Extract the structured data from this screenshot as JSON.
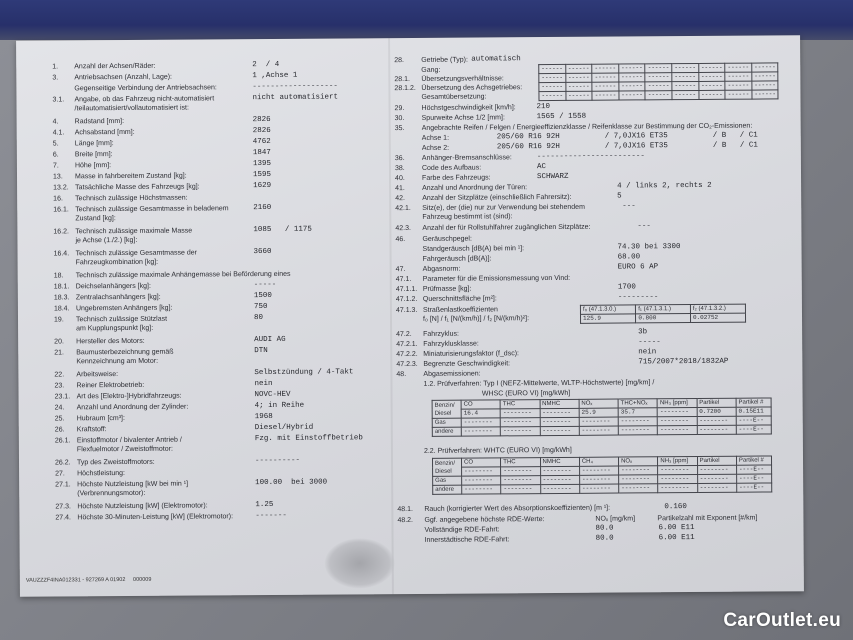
{
  "left_rows": [
    {
      "num": "1.",
      "label": "Anzahl der Achsen/Räder:",
      "value": "2  / 4"
    },
    {
      "num": "3.",
      "label": "Antriebsachsen (Anzahl, Lage):",
      "value": "1 ,Achse 1"
    },
    {
      "num": "",
      "label": "Gegenseitige Verbindung der Antriebsachsen:",
      "value": "-------------------"
    },
    {
      "num": "3.1.",
      "label": "Angabe, ob das Fahrzeug nicht-automatisiert\n/teilautomatisiert/vollautomatisiert ist:",
      "value": "nicht automatisiert"
    },
    {
      "num": "4.",
      "label": "Radstand [mm]:",
      "value": "2826"
    },
    {
      "num": "4.1.",
      "label": "Achsabstand [mm]:",
      "value": "2826"
    },
    {
      "num": "5.",
      "label": "Länge [mm]:",
      "value": "4762"
    },
    {
      "num": "6.",
      "label": "Breite [mm]:",
      "value": "1847"
    },
    {
      "num": "7.",
      "label": "Höhe [mm]:",
      "value": "1395"
    },
    {
      "num": "13.",
      "label": "Masse in fahrbereitem Zustand [kg]:",
      "value": "1595"
    },
    {
      "num": "13.2.",
      "label": "Tatsächliche Masse des Fahrzeugs [kg]:",
      "value": "1629"
    },
    {
      "num": "16.",
      "label": "Technisch zulässige Höchstmassen:",
      "value": ""
    },
    {
      "num": "16.1.",
      "label": "Technisch zulässige Gesamtmasse in beladenem\nZustand [kg]:",
      "value": "2160"
    },
    {
      "num": "16.2.",
      "label": "Technisch zulässige maximale Masse\nje Achse (1./2.) [kg]:",
      "value": "1085   / 1175"
    },
    {
      "num": "16.4.",
      "label": "Technisch zulässige Gesamtmasse der\nFahrzeugkombination [kg]:",
      "value": "3660"
    },
    {
      "num": "18.",
      "label": "Technisch zulässige maximale Anhängemasse bei Beförderung eines",
      "value": ""
    },
    {
      "num": "18.1.",
      "label": "Deichselanhängers [kg]:",
      "value": "-----"
    },
    {
      "num": "18.3.",
      "label": "Zentralachsanhängers [kg]:",
      "value": "1500"
    },
    {
      "num": "18.4.",
      "label": "Ungebremsten Anhängers [kg]:",
      "value": "750"
    },
    {
      "num": "19.",
      "label": "Technisch zulässige Stützlast\nam Kupplungspunkt [kg]:",
      "value": "80"
    },
    {
      "num": "20.",
      "label": "Hersteller des Motors:",
      "value": "AUDI AG"
    },
    {
      "num": "21.",
      "label": "Baumusterbezeichnung gemäß\nKennzeichnung am Motor:",
      "value": "DTN"
    },
    {
      "num": "22.",
      "label": "Arbeitsweise:",
      "value": "Selbstzündung / 4-Takt"
    },
    {
      "num": "23.",
      "label": "Reiner Elektrobetrieb:",
      "value": "nein"
    },
    {
      "num": "23.1.",
      "label": "Art des [Elektro-]Hybridfahrzeugs:",
      "value": "NOVC-HEV"
    },
    {
      "num": "24.",
      "label": "Anzahl und Anordnung der Zylinder:",
      "value": "4; in Reihe"
    },
    {
      "num": "25.",
      "label": "Hubraum [cm³]:",
      "value": "1968"
    },
    {
      "num": "26.",
      "label": "Kraftstoff:",
      "value": "Diesel/Hybrid"
    },
    {
      "num": "26.1.",
      "label": "Einstoffmotor / bivalenter Antrieb /\nFlexfuelmotor / Zweistoffmotor:",
      "value": "Fzg. mit Einstoffbetrieb"
    },
    {
      "num": "26.2.",
      "label": "Typ des Zweistoffmotors:",
      "value": "----------"
    },
    {
      "num": "27.",
      "label": "Höchstleistung:",
      "value": ""
    },
    {
      "num": "27.1.",
      "label": "Höchste Nutzleistung [kW bei min ¹]\n(Verbrennungsmotor):",
      "value": "100.00  bei 3000"
    },
    {
      "num": "27.3.",
      "label": "Höchste Nutzleistung [kW] (Elektromotor):",
      "value": "1.25"
    },
    {
      "num": "27.4.",
      "label": "Höchste 30-Minuten-Leistung [kW] (Elektromotor):",
      "value": "-------"
    }
  ],
  "right_rows": [
    {
      "num": "28.",
      "label": "Getriebe (Typ):",
      "value": "automatisch"
    },
    {
      "num": "",
      "label": "Gang:",
      "value": ""
    },
    {
      "num": "28.1.",
      "label": "Übersetzungsverhältnisse:",
      "value": ""
    },
    {
      "num": "28.1.2.",
      "label": "Übersetzung des Achsgetriebes:",
      "value": ""
    },
    {
      "num": "",
      "label": "Gesamtübersetzung:",
      "value": ""
    },
    {
      "num": "29.",
      "label": "Höchstgeschwindigkeit [km/h]:",
      "value": "210"
    },
    {
      "num": "30.",
      "label": "Spurweite Achse 1/2 [mm]:",
      "value": "1565   / 1558"
    },
    {
      "num": "35.",
      "label": "Angebrachte Reifen / Felgen / Energieeffizienzklasse / Reifenklasse zur Bestimmung der CO₂-Emissionen:",
      "value": ""
    },
    {
      "num": "",
      "label": "Achse 1:",
      "value": "205/60 R16 92H          / 7,0JX16 ET35          / B   / C1"
    },
    {
      "num": "",
      "label": "Achse 2:",
      "value": "205/60 R16 92H          / 7,0JX16 ET35          / B   / C1"
    },
    {
      "num": "36.",
      "label": "Anhänger-Bremsanschlüsse:",
      "value": "------------------------"
    },
    {
      "num": "38.",
      "label": "Code des Aufbaus:",
      "value": "AC"
    },
    {
      "num": "40.",
      "label": "Farbe des Fahrzeugs:",
      "value": "SCHWARZ"
    },
    {
      "num": "41.",
      "label": "Anzahl und Anordnung der Türen:",
      "value": "              4   / links 2, rechts 2"
    },
    {
      "num": "42.",
      "label": "Anzahl der Sitzplätze (einschließlich Fahrersitz):",
      "value": "              5"
    },
    {
      "num": "42.1.",
      "label": "Sitz(e), der (die) nur zur Verwendung bei stehendem\nFahrzeug bestimmt ist (sind):",
      "value": "              ---"
    },
    {
      "num": "42.3.",
      "label": "Anzahl der für Rollstuhlfahrer zugänglichen Sitzplätze:",
      "value": "              ---"
    },
    {
      "num": "46.",
      "label": "Geräuschpegel:",
      "value": ""
    },
    {
      "num": "",
      "label": "Standgeräusch [dB(A) bei min ¹]:",
      "value": "              74.30  bei 3300"
    },
    {
      "num": "",
      "label": "Fahrgeräusch [dB(A)]:",
      "value": "              68.00"
    },
    {
      "num": "47.",
      "label": "Abgasnorm:",
      "value": "              EURO 6 AP"
    },
    {
      "num": "47.1.",
      "label": "Parameter für die Emissionsmessung von Vind:",
      "value": ""
    },
    {
      "num": "47.1.1.",
      "label": "Prüfmasse [kg]:",
      "value": "              1700"
    },
    {
      "num": "47.1.2.",
      "label": "Querschnittsfläche [m²]:",
      "value": "              ---------"
    },
    {
      "num": "47.1.3.",
      "label": "Straßenlastkoeffizienten\nf₀ [N] / f₁ [N/(km/h)] / f₂ [N/(km/h)²]:",
      "value": ""
    },
    {
      "num": "47.2.",
      "label": "Fahrzyklus:",
      "value": "              3b"
    },
    {
      "num": "47.2.1.",
      "label": "Fahrzyklusklasse:",
      "value": "              -----"
    },
    {
      "num": "47.2.2.",
      "label": "Miniaturisierungsfaktor (f_dsc):",
      "value": "              nein"
    },
    {
      "num": "47.2.3.",
      "label": "Begrenzte Geschwindigkeit:",
      "value": "              715/2007*2018/1832AP"
    },
    {
      "num": "48.",
      "label": "Abgasemissionen:",
      "value": ""
    },
    {
      "num": "",
      "label": "1.2. Prüfverfahren: Typ I (NEFZ-Mittelwerte, WLTP-Höchstwerte) [mg/km] /",
      "value": ""
    },
    {
      "num": "",
      "label": "                              WHSC (EURO VI) [mg/kWh]",
      "value": ""
    },
    {
      "num": "",
      "label": "2.2. Prüfverfahren: WHTC (EURO VI) [mg/kWh]",
      "value": ""
    },
    {
      "num": "48.1.",
      "label": "Rauch (korrigierter Wert des Absorptionskoeffizienten) [m ¹]:",
      "value": "0.160"
    },
    {
      "num": "48.2.",
      "label": "Ggf. angegebene höchste RDE-Werte:",
      "value": ""
    },
    {
      "num": "",
      "label": "Vollständige RDE-Fahrt:",
      "value": "80.0          6.00 E11"
    },
    {
      "num": "",
      "label": "Innerstädtische RDE-Fahrt:",
      "value": "80.0          6.00 E11"
    }
  ],
  "rde_headers": {
    "nox": "NOₓ [mg/km]",
    "pn": "Partikelzahl mit Exponent [#/km]"
  },
  "gear_table": {
    "cell": "------",
    "cols": 9,
    "rows": 4
  },
  "road_load": {
    "headers": [
      "f₀ (47.1.3.0.)",
      "f₁ (47.1.3.1.)",
      "f₂ (47.1.3.2.)"
    ],
    "values": [
      "125.9",
      "0.800",
      "0.02752"
    ]
  },
  "emissions_table_1": {
    "headers": [
      "CO",
      "THC",
      "NMHC",
      "NOₓ",
      "THC+NOₓ",
      "NH₃ [ppm]",
      "Partikel",
      "Partikel #"
    ],
    "rows": [
      {
        "fuel": "Benzin/ Diesel",
        "cells": [
          "16.4",
          "--------",
          "--------",
          "25.9",
          "35.7",
          "--------",
          "0.7200",
          "0.15E11"
        ]
      },
      {
        "fuel": "Gas",
        "cells": [
          "--------",
          "--------",
          "--------",
          "--------",
          "--------",
          "--------",
          "--------",
          "----E--"
        ]
      },
      {
        "fuel": "andere",
        "cells": [
          "--------",
          "--------",
          "--------",
          "--------",
          "--------",
          "--------",
          "--------",
          "----E--"
        ]
      }
    ]
  },
  "emissions_table_2": {
    "headers": [
      "CO",
      "THC",
      "NMHC",
      "CH₄",
      "NOₓ",
      "NH₃ [ppm]",
      "Partikel",
      "Partikel #"
    ],
    "rows": [
      {
        "fuel": "Benzin/ Diesel",
        "cells": [
          "--------",
          "--------",
          "--------",
          "--------",
          "--------",
          "--------",
          "--------",
          "----E--"
        ]
      },
      {
        "fuel": "Gas",
        "cells": [
          "--------",
          "--------",
          "--------",
          "--------",
          "--------",
          "--------",
          "--------",
          "----E--"
        ]
      },
      {
        "fuel": "andere",
        "cells": [
          "--------",
          "--------",
          "--------",
          "--------",
          "--------",
          "--------",
          "--------",
          "----E--"
        ]
      }
    ]
  },
  "footer_code": "VAUZZZF4INA012331 - 927269 A 01902     000009",
  "watermark": "CarOutlet.eu"
}
